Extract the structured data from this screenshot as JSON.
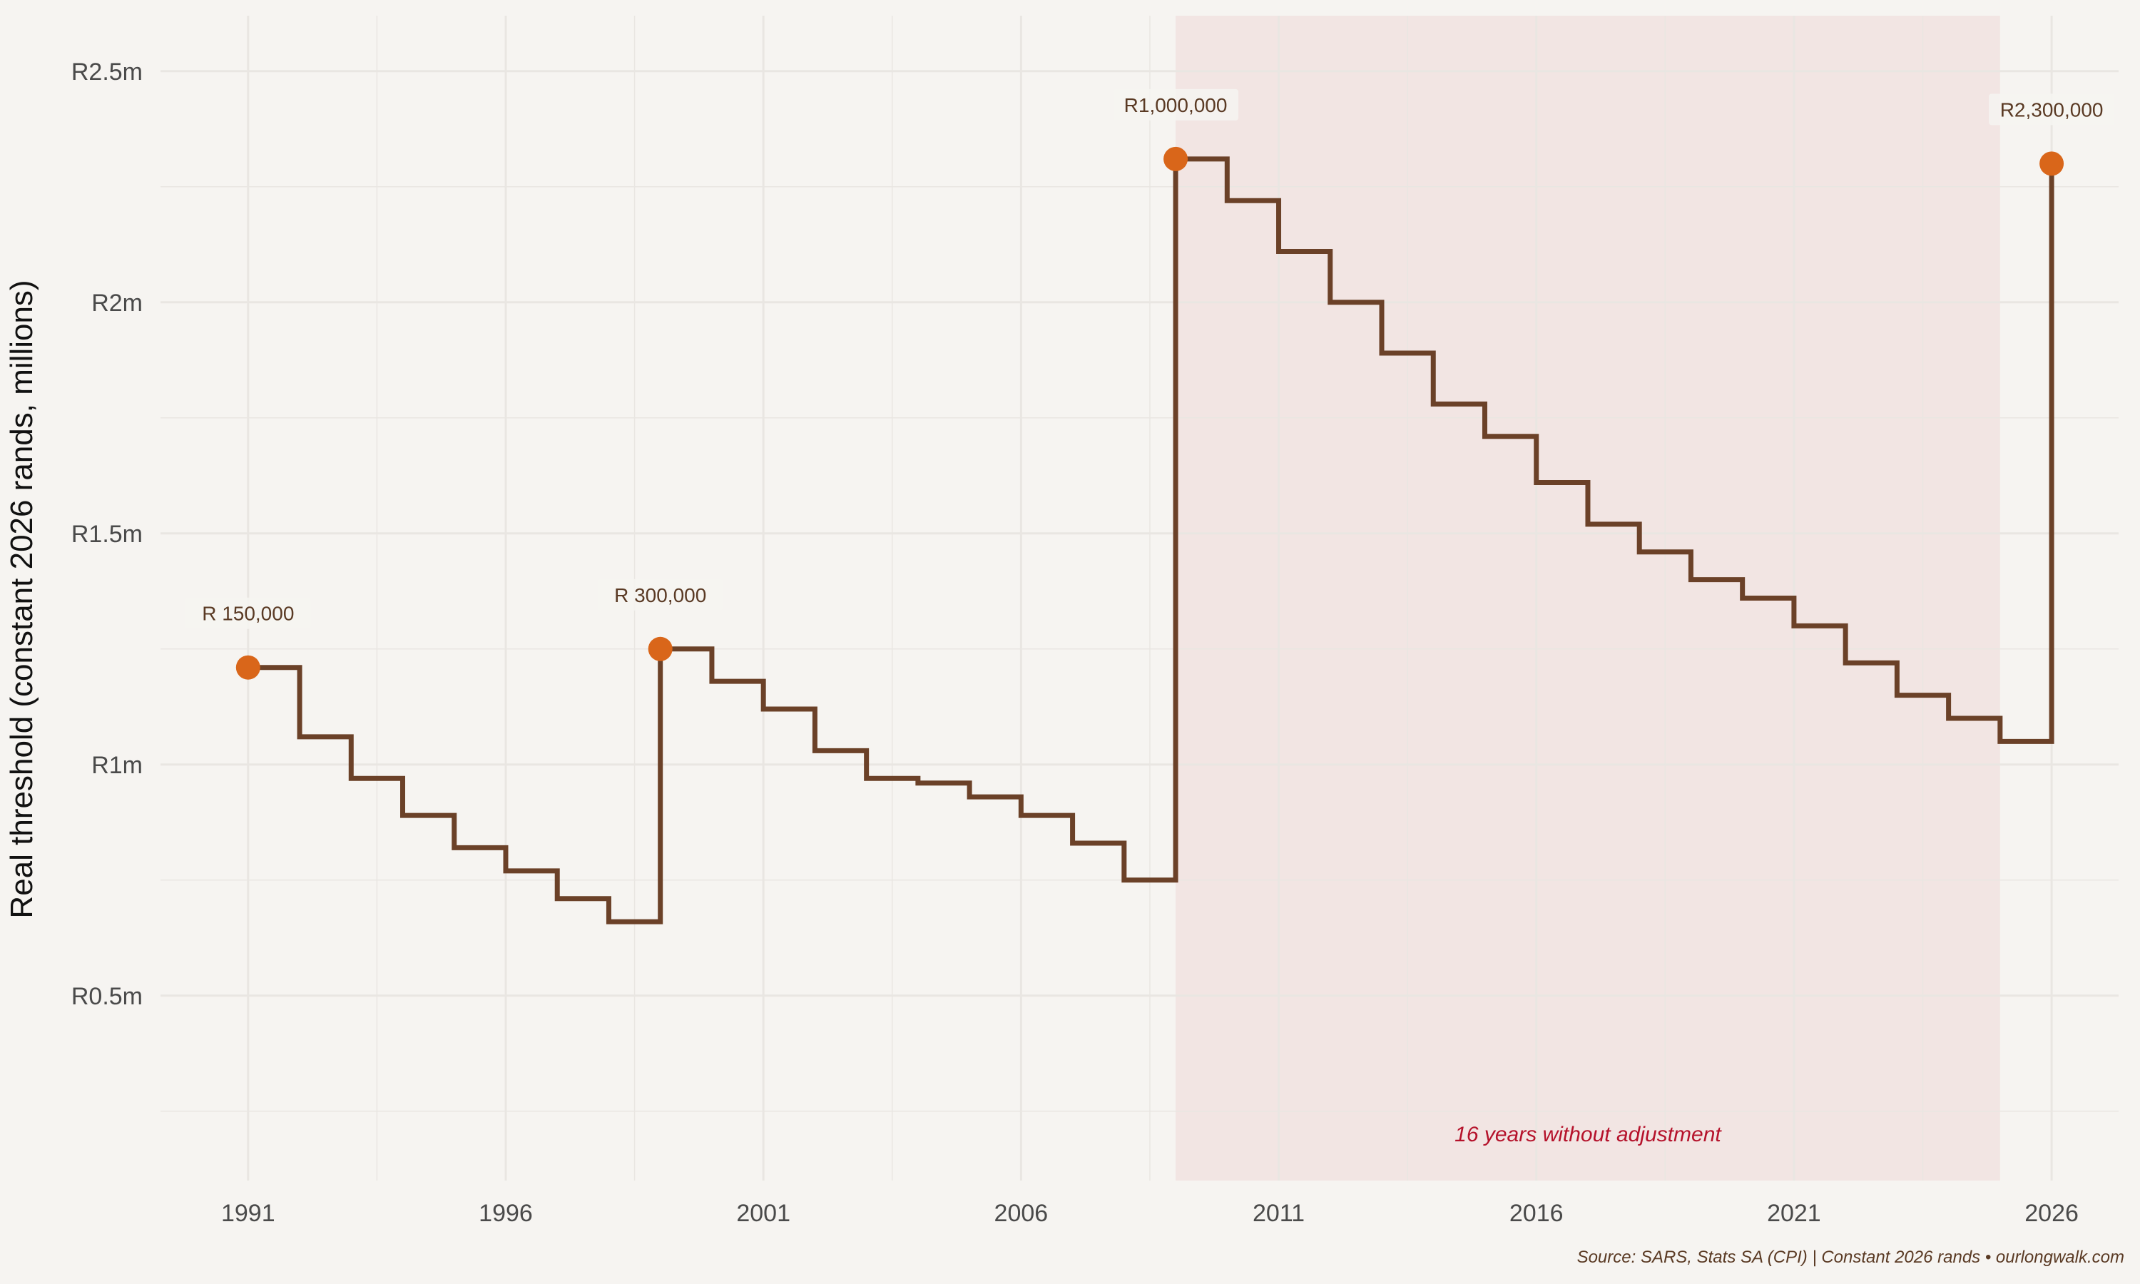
{
  "chart_data": {
    "type": "line",
    "step": true,
    "title": "",
    "xlabel": "",
    "ylabel": "Real threshold (constant 2026 rands, millions)",
    "xlim": [
      1989.3,
      2027.3
    ],
    "ylim": [
      0.1,
      2.62
    ],
    "x_ticks": [
      1991,
      1996,
      2001,
      2006,
      2011,
      2016,
      2021,
      2026
    ],
    "y_ticks": [
      0.5,
      1.0,
      1.5,
      2.0,
      2.5
    ],
    "y_tick_labels": [
      "R0.5m",
      "R1m",
      "R1.5m",
      "R2m",
      "R2.5m"
    ],
    "grid": true,
    "series": [
      {
        "x": [
          1991,
          1992,
          1993,
          1994,
          1995,
          1996,
          1997,
          1998,
          1999,
          2000,
          2001,
          2002,
          2003,
          2004,
          2005,
          2006,
          2007,
          2008,
          2009,
          2010,
          2011,
          2012,
          2013,
          2014,
          2015,
          2016,
          2017,
          2018,
          2019,
          2020,
          2021,
          2022,
          2023,
          2024,
          2025,
          2026
        ],
        "y": [
          1.21,
          1.06,
          0.97,
          0.89,
          0.82,
          0.77,
          0.71,
          0.66,
          1.25,
          1.18,
          1.12,
          1.03,
          0.97,
          0.96,
          0.93,
          0.89,
          0.83,
          0.75,
          2.31,
          2.22,
          2.11,
          2.0,
          1.89,
          1.78,
          1.71,
          1.61,
          1.52,
          1.46,
          1.4,
          1.36,
          1.3,
          1.22,
          1.15,
          1.1,
          1.05,
          2.3
        ]
      }
    ],
    "highlight_points": [
      {
        "x": 1991,
        "y": 1.21,
        "label": "R  150,000"
      },
      {
        "x": 1999,
        "y": 1.25,
        "label": "R  300,000"
      },
      {
        "x": 2009,
        "y": 2.31,
        "label": "R1,000,000"
      },
      {
        "x": 2026,
        "y": 2.3,
        "label": "R2,300,000"
      }
    ],
    "shaded_period": {
      "from": 2009,
      "to": 2025,
      "label": "16 years without adjustment"
    },
    "caption": "Source: SARS, Stats SA (CPI) | Constant 2026 rands • ourlongwalk.com",
    "colors": {
      "background": "#f6f4f1",
      "line": "#6b4128",
      "points": "#d9661a",
      "shade": "#f0e0de",
      "grid": "#e9e6e2",
      "period_label": "#b5122b"
    }
  }
}
